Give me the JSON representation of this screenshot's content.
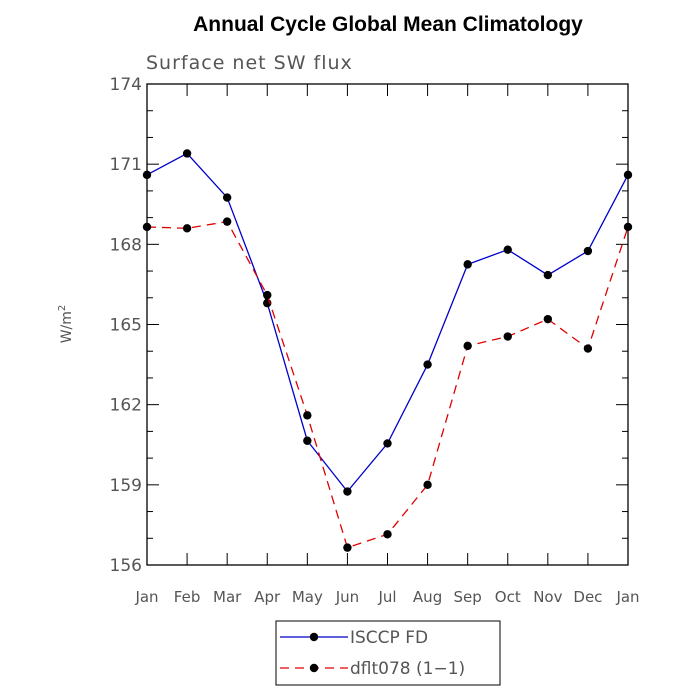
{
  "chart_data": {
    "type": "line",
    "title": "Annual Cycle Global Mean Climatology",
    "subtitle": "Surface net SW flux",
    "xlabel": "",
    "ylabel": "W/m",
    "ylabel_sup": "2",
    "categories": [
      "Jan",
      "Feb",
      "Mar",
      "Apr",
      "May",
      "Jun",
      "Jul",
      "Aug",
      "Sep",
      "Oct",
      "Nov",
      "Dec",
      "Jan"
    ],
    "ylim": [
      156,
      174
    ],
    "yticks": [
      156,
      159,
      162,
      165,
      168,
      171,
      174
    ],
    "grid": false,
    "legend_position": "bottom-center",
    "series": [
      {
        "name": "ISCCP FD",
        "color": "#0000cc",
        "dash": "solid",
        "values": [
          170.6,
          171.4,
          169.75,
          165.8,
          160.65,
          158.75,
          160.55,
          163.5,
          167.25,
          167.8,
          166.85,
          167.75,
          170.6
        ]
      },
      {
        "name": "dflt078 (1−1)",
        "color": "#e00000",
        "dash": "dashed",
        "values": [
          168.65,
          168.6,
          168.85,
          166.1,
          161.6,
          156.65,
          157.15,
          159.0,
          164.2,
          164.55,
          165.2,
          164.1,
          168.65
        ]
      }
    ]
  }
}
